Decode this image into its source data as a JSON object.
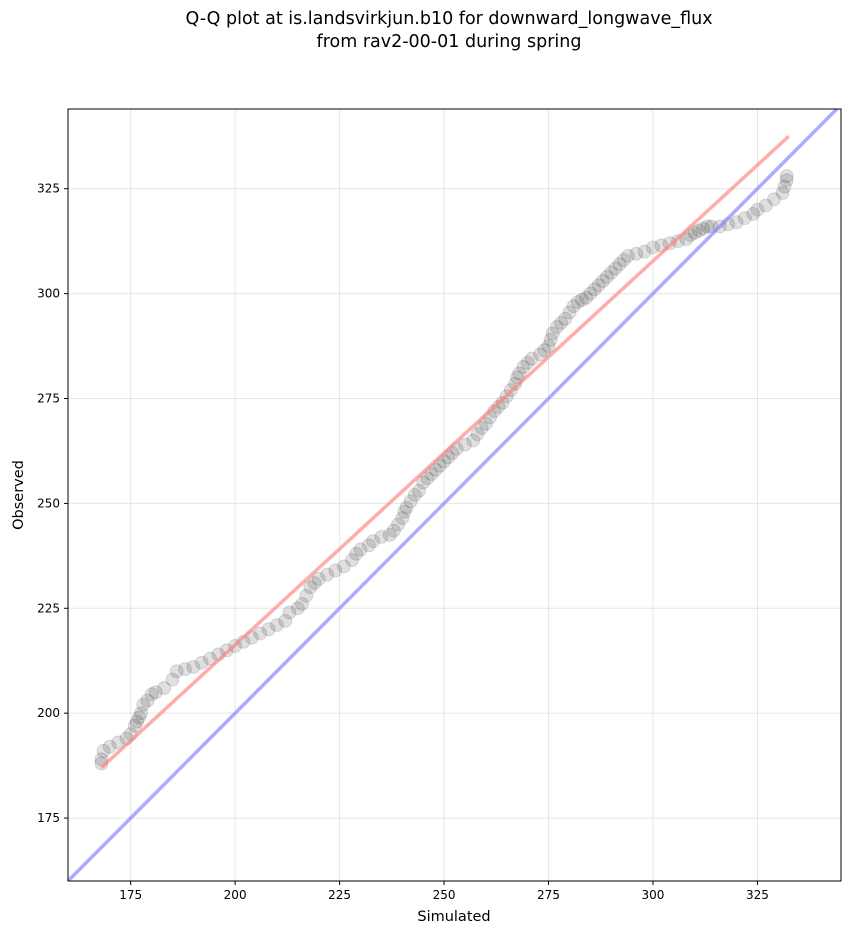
{
  "chart_data": {
    "type": "scatter",
    "title": "Q-Q plot at is.landsvirkjun.b10 for downward_longwave_flux",
    "subtitle": "from rav2-00-01 during spring",
    "xlabel": "Simulated",
    "ylabel": "Observed",
    "xlim": [
      160,
      345
    ],
    "ylim": [
      160,
      344
    ],
    "xticks": [
      175,
      200,
      225,
      250,
      275,
      300,
      325
    ],
    "yticks": [
      175,
      200,
      225,
      250,
      275,
      300,
      325
    ],
    "grid": true,
    "series": [
      {
        "kind": "scatter",
        "color": "#000000",
        "points": [
          [
            168,
            188
          ],
          [
            168,
            189
          ],
          [
            168.5,
            191
          ],
          [
            170,
            192
          ],
          [
            172,
            193
          ],
          [
            174,
            194
          ],
          [
            175,
            195
          ],
          [
            176,
            197
          ],
          [
            176.5,
            198
          ],
          [
            177,
            199
          ],
          [
            177.5,
            200
          ],
          [
            178,
            202
          ],
          [
            179,
            203
          ],
          [
            180,
            204.5
          ],
          [
            181,
            205
          ],
          [
            183,
            206
          ],
          [
            185,
            208
          ],
          [
            186,
            210
          ],
          [
            188,
            210.5
          ],
          [
            190,
            211
          ],
          [
            192,
            212
          ],
          [
            194,
            213
          ],
          [
            196,
            214
          ],
          [
            198,
            215
          ],
          [
            200,
            216
          ],
          [
            202,
            217
          ],
          [
            204,
            218
          ],
          [
            206,
            219
          ],
          [
            208,
            220
          ],
          [
            210,
            221
          ],
          [
            212,
            222
          ],
          [
            213,
            224
          ],
          [
            215,
            225
          ],
          [
            216,
            226
          ],
          [
            217,
            228
          ],
          [
            218,
            230
          ],
          [
            219,
            231
          ],
          [
            220,
            232
          ],
          [
            222,
            233
          ],
          [
            224,
            234
          ],
          [
            226,
            235
          ],
          [
            228,
            236.5
          ],
          [
            229,
            238
          ],
          [
            230,
            239
          ],
          [
            232,
            240
          ],
          [
            233,
            241
          ],
          [
            235,
            242
          ],
          [
            237,
            242.5
          ],
          [
            238,
            243.5
          ],
          [
            239,
            245
          ],
          [
            240,
            246.5
          ],
          [
            240.5,
            248
          ],
          [
            241,
            249
          ],
          [
            242,
            250.5
          ],
          [
            243,
            252
          ],
          [
            244,
            253
          ],
          [
            245,
            255
          ],
          [
            246,
            256
          ],
          [
            247,
            257
          ],
          [
            248,
            258
          ],
          [
            249,
            259
          ],
          [
            250,
            260
          ],
          [
            251,
            261
          ],
          [
            252,
            262
          ],
          [
            253,
            263
          ],
          [
            255,
            264
          ],
          [
            257,
            265
          ],
          [
            258,
            266.5
          ],
          [
            259,
            268
          ],
          [
            260,
            269
          ],
          [
            261,
            270.5
          ],
          [
            262,
            272
          ],
          [
            263,
            273
          ],
          [
            264,
            274
          ],
          [
            265,
            275.5
          ],
          [
            266,
            277
          ],
          [
            267,
            278.5
          ],
          [
            267.5,
            280
          ],
          [
            268,
            281
          ],
          [
            269,
            282.5
          ],
          [
            270,
            283.5
          ],
          [
            271,
            284.5
          ],
          [
            273,
            285.5
          ],
          [
            274,
            286.5
          ],
          [
            275,
            287.5
          ],
          [
            275.5,
            289
          ],
          [
            276,
            290.5
          ],
          [
            277,
            292
          ],
          [
            278,
            293
          ],
          [
            279,
            294
          ],
          [
            280,
            295.5
          ],
          [
            281,
            297
          ],
          [
            282,
            298
          ],
          [
            283,
            298.5
          ],
          [
            284,
            299
          ],
          [
            285,
            300
          ],
          [
            286,
            301
          ],
          [
            287,
            302
          ],
          [
            288,
            303
          ],
          [
            289,
            304
          ],
          [
            290,
            305
          ],
          [
            291,
            306
          ],
          [
            292,
            307
          ],
          [
            293,
            308
          ],
          [
            294,
            309
          ],
          [
            296,
            309.5
          ],
          [
            298,
            310
          ],
          [
            300,
            311
          ],
          [
            302,
            311.5
          ],
          [
            304,
            312
          ],
          [
            306,
            312.5
          ],
          [
            308,
            313
          ],
          [
            309,
            314
          ],
          [
            310,
            314.5
          ],
          [
            311,
            315
          ],
          [
            312,
            315.5
          ],
          [
            313,
            316
          ],
          [
            314,
            316
          ],
          [
            316,
            316
          ],
          [
            318,
            316.5
          ],
          [
            320,
            317
          ],
          [
            322,
            318
          ],
          [
            324,
            319
          ],
          [
            325,
            320
          ],
          [
            327,
            321
          ],
          [
            329,
            322.5
          ],
          [
            331,
            324
          ],
          [
            331.5,
            325.5
          ],
          [
            332,
            327
          ],
          [
            332,
            328
          ]
        ]
      },
      {
        "kind": "line",
        "color": "#ff7f7f",
        "x": [
          168,
          332.5
        ],
        "y": [
          187,
          337.5
        ]
      },
      {
        "kind": "line",
        "color": "#7f7fff",
        "x": [
          160,
          345
        ],
        "y": [
          160,
          345
        ]
      }
    ]
  }
}
